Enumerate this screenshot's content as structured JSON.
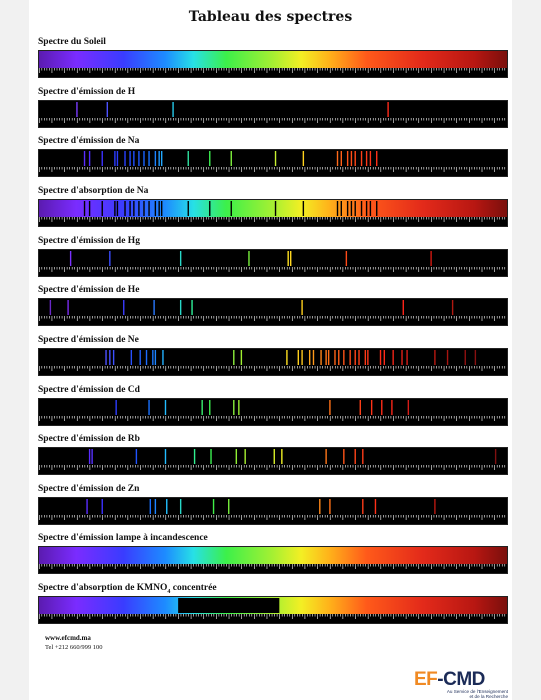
{
  "title": "Tableau des spectres",
  "spectra": [
    {
      "label": "Spectre du Soleil",
      "kind": "continuous",
      "bands": []
    },
    {
      "label": "Spectre d'émission de H",
      "kind": "emission",
      "lines": [
        [
          410,
          "#7a3cff"
        ],
        [
          434,
          "#4d52ff"
        ],
        [
          486,
          "#25c8e8"
        ],
        [
          656,
          "#ff2a1a"
        ]
      ]
    },
    {
      "label": "Spectre d'émission de Na",
      "kind": "emission",
      "lines": [
        [
          416,
          "#5a2cff"
        ],
        [
          420,
          "#4f2cff"
        ],
        [
          430,
          "#3c30ff"
        ],
        [
          440,
          "#2c3cff"
        ],
        [
          442,
          "#2c3cff"
        ],
        [
          448,
          "#2840ff"
        ],
        [
          452,
          "#2448ff"
        ],
        [
          455,
          "#2050ff"
        ],
        [
          459,
          "#1e58ff"
        ],
        [
          463,
          "#1a64ff"
        ],
        [
          467,
          "#1870ff"
        ],
        [
          472,
          "#1c84ff"
        ],
        [
          475,
          "#209cff"
        ],
        [
          477,
          "#22a8ff"
        ],
        [
          498,
          "#2ee0a0"
        ],
        [
          515,
          "#3cf050"
        ],
        [
          532,
          "#7ef03c"
        ],
        [
          567,
          "#c8f030"
        ],
        [
          589,
          "#ffd21c"
        ],
        [
          616,
          "#ff6a1a"
        ],
        [
          619,
          "#ff6018"
        ],
        [
          624,
          "#ff5418"
        ],
        [
          627,
          "#ff4e18"
        ],
        [
          630,
          "#ff4818"
        ],
        [
          635,
          "#ff4018"
        ],
        [
          639,
          "#ff3818"
        ],
        [
          642,
          "#ff3418"
        ],
        [
          647,
          "#ff3018"
        ]
      ]
    },
    {
      "label": "Spectre d'absorption de Na",
      "kind": "absorption",
      "lines": [
        416,
        420,
        430,
        440,
        442,
        448,
        452,
        455,
        459,
        463,
        467,
        472,
        475,
        477,
        498,
        515,
        532,
        567,
        589,
        616,
        619,
        624,
        627,
        630,
        635,
        639,
        642,
        647
      ]
    },
    {
      "label": "Spectre d'émission de Hg",
      "kind": "emission",
      "lines": [
        [
          405,
          "#7a30ff"
        ],
        [
          436,
          "#3a4cff"
        ],
        [
          492,
          "#28d8c8"
        ],
        [
          546,
          "#78f03c"
        ],
        [
          577,
          "#ffe020"
        ],
        [
          579,
          "#ffd820"
        ],
        [
          623,
          "#ff4a18"
        ],
        [
          690,
          "#d01810"
        ]
      ]
    },
    {
      "label": "Spectre d'émission de He",
      "kind": "emission",
      "lines": [
        [
          389,
          "#6a28c8"
        ],
        [
          403,
          "#7a2cf0"
        ],
        [
          447,
          "#3a3cff"
        ],
        [
          471,
          "#2878ff"
        ],
        [
          492,
          "#28d8c8"
        ],
        [
          501,
          "#2ef098"
        ],
        [
          588,
          "#ffd01c"
        ],
        [
          668,
          "#ff2418"
        ],
        [
          707,
          "#b01810"
        ]
      ]
    },
    {
      "label": "Spectre d'émission de Ne",
      "kind": "emission",
      "lines": [
        [
          433,
          "#4c50ff"
        ],
        [
          436,
          "#4850ff"
        ],
        [
          439,
          "#3c50ff"
        ],
        [
          453,
          "#2850ff"
        ],
        [
          460,
          "#2060ff"
        ],
        [
          465,
          "#1c6cff"
        ],
        [
          470,
          "#1a78ff"
        ],
        [
          472,
          "#1c84ff"
        ],
        [
          478,
          "#22b0ff"
        ],
        [
          534,
          "#8cf03c"
        ],
        [
          540,
          "#a0f030"
        ],
        [
          576,
          "#ffe020"
        ],
        [
          585,
          "#ffd01c"
        ],
        [
          588,
          "#ffc81c"
        ],
        [
          594,
          "#ffa81a"
        ],
        [
          597,
          "#ff9a1a"
        ],
        [
          603,
          "#ff8418"
        ],
        [
          607,
          "#ff7618"
        ],
        [
          609,
          "#ff7018"
        ],
        [
          614,
          "#ff6418"
        ],
        [
          617,
          "#ff5e18"
        ],
        [
          621,
          "#ff5418"
        ],
        [
          626,
          "#ff4a18"
        ],
        [
          630,
          "#ff4418"
        ],
        [
          633,
          "#ff4018"
        ],
        [
          638,
          "#ff3a18"
        ],
        [
          640,
          "#ff3618"
        ],
        [
          650,
          "#ff2c18"
        ],
        [
          653,
          "#ff2a18"
        ],
        [
          660,
          "#f02418"
        ],
        [
          667,
          "#e02018"
        ],
        [
          671,
          "#d81c18"
        ],
        [
          693,
          "#b81810"
        ],
        [
          703,
          "#a81410"
        ],
        [
          717,
          "#901010"
        ],
        [
          725,
          "#881010"
        ]
      ]
    },
    {
      "label": "Spectre d'émission de Cd",
      "kind": "emission",
      "lines": [
        [
          441,
          "#2c3cff"
        ],
        [
          467,
          "#1870ff"
        ],
        [
          480,
          "#22bcff"
        ],
        [
          509,
          "#3af070"
        ],
        [
          515,
          "#3cf050"
        ],
        [
          534,
          "#88f03c"
        ],
        [
          538,
          "#98f034"
        ],
        [
          610,
          "#ff7018"
        ],
        [
          634,
          "#ff4018"
        ],
        [
          643,
          "#ff3218"
        ],
        [
          651,
          "#ff2c18"
        ],
        [
          659,
          "#f82618"
        ],
        [
          672,
          "#d81c18"
        ]
      ]
    },
    {
      "label": "Spectre d'émission de Rb",
      "kind": "emission",
      "lines": [
        [
          420,
          "#5a2cff"
        ],
        [
          422,
          "#5830ff"
        ],
        [
          457,
          "#2054ff"
        ],
        [
          480,
          "#22bcff"
        ],
        [
          503,
          "#30f090"
        ],
        [
          516,
          "#3cf050"
        ],
        [
          536,
          "#90f034"
        ],
        [
          543,
          "#a8f030"
        ],
        [
          566,
          "#d8f028"
        ],
        [
          572,
          "#f0f024"
        ],
        [
          607,
          "#ff7618"
        ],
        [
          621,
          "#ff5418"
        ],
        [
          630,
          "#ff4418"
        ],
        [
          636,
          "#ff3c18"
        ],
        [
          741,
          "#801010"
        ]
      ]
    },
    {
      "label": "Spectre d'émission de Zn",
      "kind": "emission",
      "lines": [
        [
          418,
          "#5a2cff"
        ],
        [
          430,
          "#3c30ff"
        ],
        [
          468,
          "#1870ff"
        ],
        [
          472,
          "#1c84ff"
        ],
        [
          481,
          "#22c0ff"
        ],
        [
          492,
          "#28d8c8"
        ],
        [
          518,
          "#40f048"
        ],
        [
          530,
          "#78f03c"
        ],
        [
          602,
          "#ff8818"
        ],
        [
          610,
          "#ff7018"
        ],
        [
          636,
          "#ff3c18"
        ],
        [
          646,
          "#ff3018"
        ],
        [
          693,
          "#b81810"
        ]
      ]
    },
    {
      "label": "Spectre d'émission lampe à incandescence",
      "kind": "continuous",
      "bands": []
    },
    {
      "label": "Spectre d'absorption de KMNO",
      "label_sub": "4",
      "label_tail": " concentrée",
      "kind": "band",
      "bands": [
        [
          490,
          570
        ]
      ]
    }
  ],
  "footer": {
    "website": "www.efcmd.ma",
    "phone": "Tel +212 660/999 100"
  },
  "logo": {
    "brand_left": "EF",
    "brand_right": "-CMD",
    "tagline_1": "Au Service de l'Enseignement",
    "tagline_2": "et de la Recherche"
  }
}
